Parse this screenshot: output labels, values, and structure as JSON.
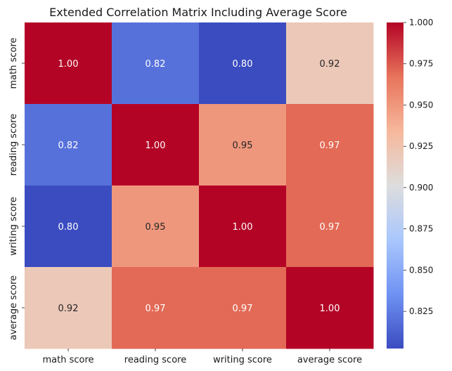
{
  "chart_data": {
    "type": "heatmap",
    "title": "Extended Correlation Matrix Including Average Score",
    "row_labels": [
      "math score",
      "reading score",
      "writing score",
      "average score"
    ],
    "col_labels": [
      "math score",
      "reading score",
      "writing score",
      "average score"
    ],
    "values": [
      [
        1.0,
        0.82,
        0.8,
        0.92
      ],
      [
        0.82,
        1.0,
        0.95,
        0.97
      ],
      [
        0.8,
        0.95,
        1.0,
        0.97
      ],
      [
        0.92,
        0.97,
        0.97,
        1.0
      ]
    ],
    "cell_labels": [
      [
        "1.00",
        "0.82",
        "0.80",
        "0.92"
      ],
      [
        "0.82",
        "1.00",
        "0.95",
        "0.97"
      ],
      [
        "0.80",
        "0.95",
        "1.00",
        "0.97"
      ],
      [
        "0.92",
        "0.97",
        "0.97",
        "1.00"
      ]
    ],
    "colormap": "coolwarm",
    "colormap_stops": [
      "#3b4cc0",
      "#6f92f3",
      "#aac7fd",
      "#dddddd",
      "#f7b89c",
      "#e7745b",
      "#b40426"
    ],
    "value_range": [
      0.8025,
      1.0
    ],
    "colorbar_ticks": [
      "0.825",
      "0.850",
      "0.875",
      "0.900",
      "0.925",
      "0.950",
      "0.975",
      "1.000"
    ]
  }
}
